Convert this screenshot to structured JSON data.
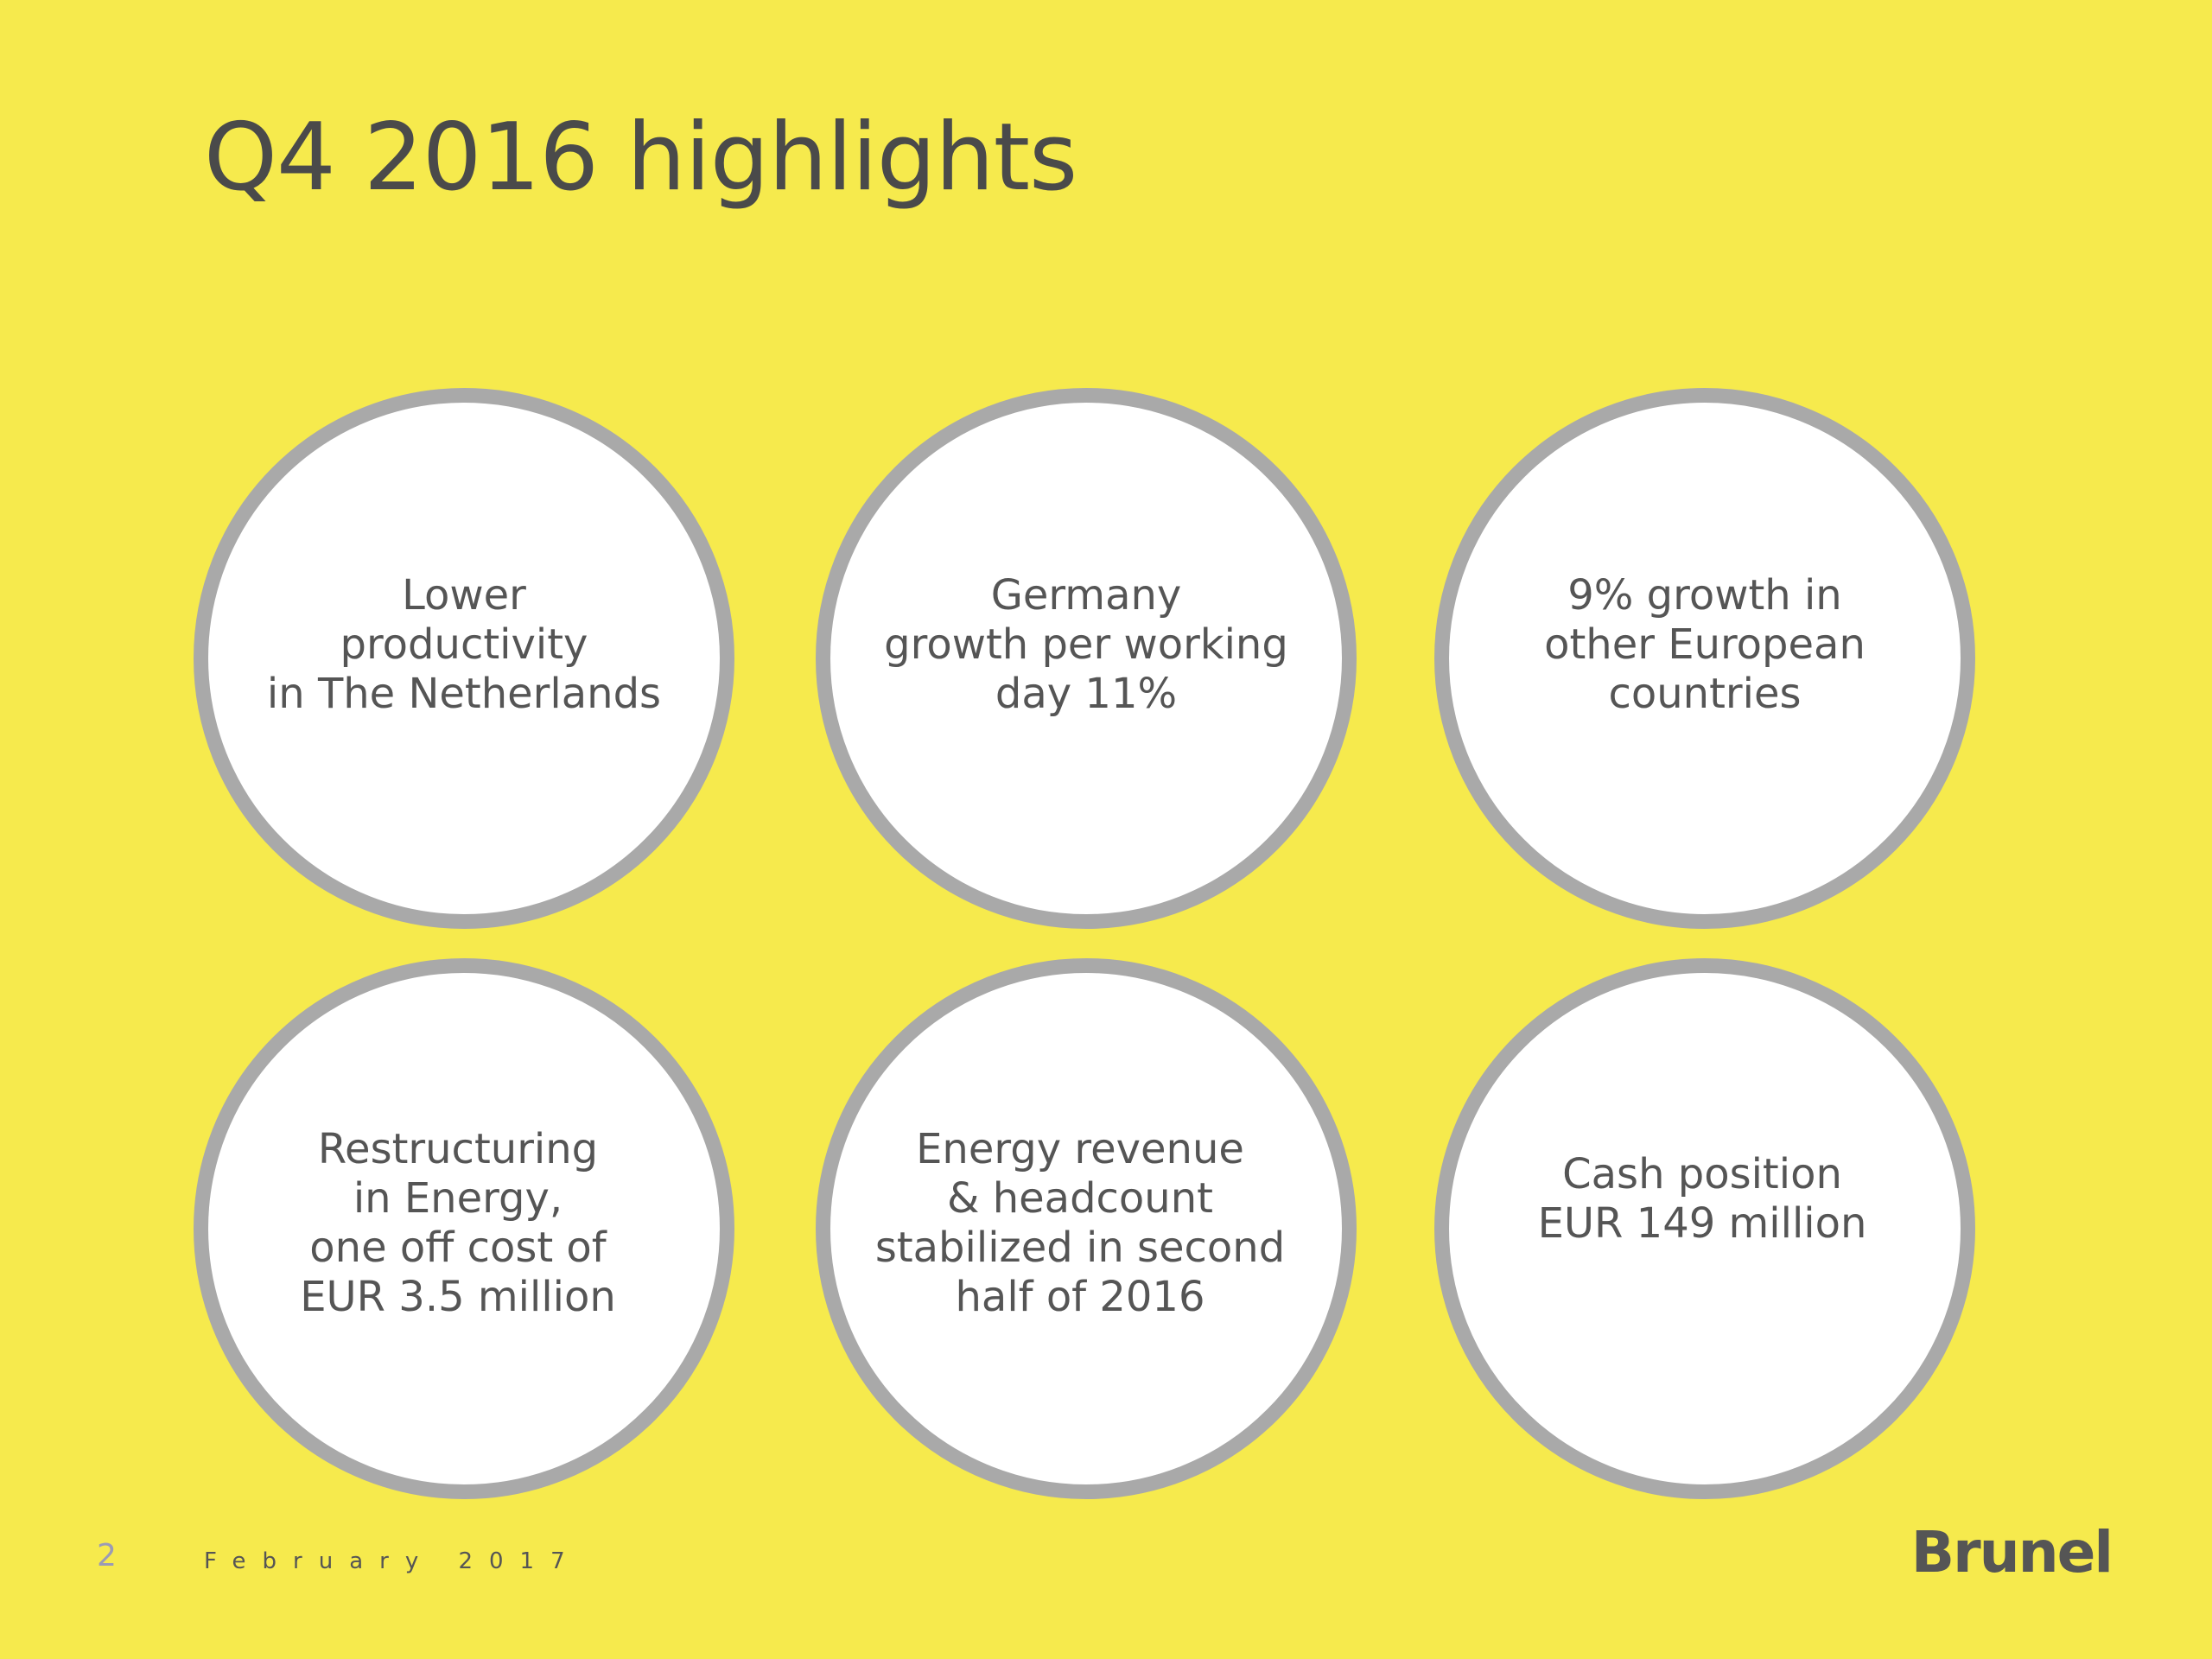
{
  "slide": {
    "title": "Q4 2016 highlights",
    "highlights": [
      {
        "text": "Lower\nproductivity\nin The Netherlands"
      },
      {
        "text": "Germany\ngrowth per working\nday 11%"
      },
      {
        "text": "9% growth in\nother European\ncountries"
      },
      {
        "text": "Restructuring\nin Energy,\none off cost of\nEUR 3.5 million"
      },
      {
        "text": "Energy revenue\n& headcount\nstabilized in second\nhalf of  2016"
      },
      {
        "text": "Cash position\nEUR 149 million"
      }
    ]
  },
  "footer": {
    "page_number": "2",
    "date": "February 2017",
    "logo_text": "Brunel"
  },
  "colors": {
    "background": "#f6ea4d",
    "circle_fill": "#ffffff",
    "circle_border": "#a9a9a9",
    "text": "#555555"
  }
}
